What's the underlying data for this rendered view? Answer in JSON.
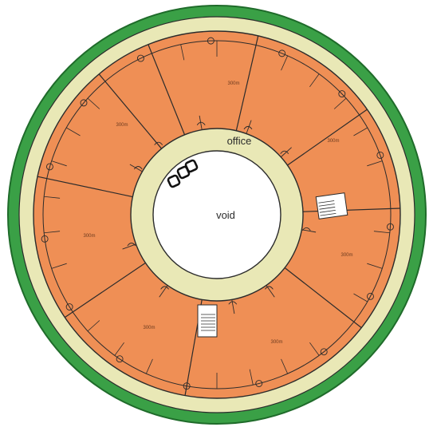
{
  "colors": {
    "background": "#ffffff",
    "outer_ring": "#3aa046",
    "outer_ring_edge": "#1f6b2a",
    "cream_ring": "#e9e8b6",
    "office_ring": "#e9e8b6",
    "units": "#ef8f55",
    "void": "#ffffff",
    "walls": "#2b2b2b",
    "stair_fill": "#ffffff"
  },
  "labels": {
    "office": "office",
    "void": "void"
  },
  "units": [
    {
      "area": "300m"
    },
    {
      "area": "300m"
    },
    {
      "area": "300m"
    },
    {
      "area": "300m"
    },
    {
      "area": "300m"
    },
    {
      "area": "300m"
    },
    {
      "area": "300m"
    }
  ],
  "icons": [
    "door-swing-icon",
    "stair-icon",
    "lift-icon"
  ]
}
